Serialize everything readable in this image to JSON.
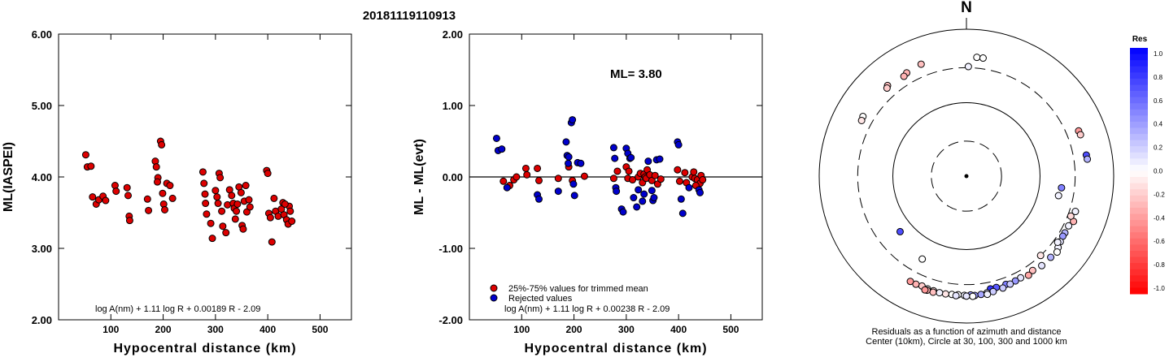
{
  "title": "20181119110913",
  "chart_data": [
    {
      "type": "scatter",
      "id": "left",
      "ylabel": "ML(IASPEI)",
      "xlabel": "Hypocentral distance (km)",
      "xlim": [
        0,
        560
      ],
      "ylim": [
        2.0,
        6.0
      ],
      "xticks": [
        100,
        200,
        300,
        400,
        500
      ],
      "yticks": [
        "2.00",
        "3.00",
        "4.00",
        "5.00",
        "6.00"
      ],
      "formula": "log A(nm) + 1.11 log R + 0.00189 R - 2.09",
      "color": "#dd0000",
      "points": [
        [
          52,
          4.31
        ],
        [
          55,
          4.14
        ],
        [
          62,
          4.15
        ],
        [
          65,
          3.72
        ],
        [
          72,
          3.62
        ],
        [
          77,
          3.68
        ],
        [
          85,
          3.73
        ],
        [
          90,
          3.67
        ],
        [
          108,
          3.88
        ],
        [
          110,
          3.8
        ],
        [
          131,
          3.85
        ],
        [
          133,
          3.74
        ],
        [
          135,
          3.45
        ],
        [
          136,
          3.39
        ],
        [
          170,
          3.69
        ],
        [
          172,
          3.53
        ],
        [
          185,
          4.22
        ],
        [
          187,
          4.14
        ],
        [
          190,
          3.99
        ],
        [
          189,
          3.93
        ],
        [
          195,
          4.5
        ],
        [
          197,
          4.45
        ],
        [
          199,
          3.77
        ],
        [
          201,
          3.62
        ],
        [
          203,
          3.54
        ],
        [
          207,
          3.91
        ],
        [
          213,
          3.88
        ],
        [
          218,
          3.7
        ],
        [
          276,
          4.07
        ],
        [
          278,
          3.91
        ],
        [
          280,
          3.76
        ],
        [
          281,
          3.63
        ],
        [
          283,
          3.48
        ],
        [
          291,
          3.35
        ],
        [
          294,
          3.14
        ],
        [
          300,
          3.81
        ],
        [
          303,
          3.72
        ],
        [
          305,
          3.63
        ],
        [
          307,
          4.05
        ],
        [
          309,
          3.99
        ],
        [
          312,
          3.52
        ],
        [
          314,
          3.31
        ],
        [
          320,
          3.22
        ],
        [
          323,
          3.61
        ],
        [
          327,
          3.82
        ],
        [
          331,
          3.74
        ],
        [
          334,
          3.63
        ],
        [
          336,
          3.56
        ],
        [
          338,
          3.41
        ],
        [
          340,
          3.52
        ],
        [
          342,
          3.62
        ],
        [
          345,
          3.86
        ],
        [
          349,
          3.78
        ],
        [
          351,
          3.32
        ],
        [
          353,
          3.27
        ],
        [
          355,
          3.66
        ],
        [
          358,
          3.88
        ],
        [
          360,
          3.51
        ],
        [
          364,
          3.68
        ],
        [
          366,
          3.58
        ],
        [
          398,
          4.09
        ],
        [
          400,
          4.05
        ],
        [
          402,
          3.49
        ],
        [
          405,
          3.43
        ],
        [
          408,
          3.09
        ],
        [
          412,
          3.7
        ],
        [
          415,
          3.52
        ],
        [
          420,
          3.45
        ],
        [
          426,
          3.55
        ],
        [
          429,
          3.64
        ],
        [
          431,
          3.47
        ],
        [
          436,
          3.4
        ],
        [
          439,
          3.34
        ],
        [
          441,
          3.59
        ],
        [
          443,
          3.52
        ],
        [
          446,
          3.38
        ],
        [
          433,
          3.62
        ]
      ]
    },
    {
      "type": "scatter",
      "id": "middle",
      "ylabel": "ML - ML(evt)",
      "xlabel": "Hypocentral distance (km)",
      "xlim": [
        0,
        560
      ],
      "ylim": [
        -2.0,
        2.0
      ],
      "xticks": [
        100,
        200,
        300,
        400,
        500
      ],
      "yticks": [
        "-2.00",
        "-1.00",
        "0.00",
        "1.00",
        "2.00"
      ],
      "annotation": "ML= 3.80",
      "formula": "log A(nm) + 1.11 log R + 0.00238 R - 2.09",
      "legend": [
        {
          "label": "25%-75% values for trimmed mean",
          "color": "#dd0000"
        },
        {
          "label": "Rejected values",
          "color": "#0000cc"
        }
      ],
      "trimmed": [
        [
          65,
          -0.06
        ],
        [
          77,
          -0.12
        ],
        [
          85,
          -0.04
        ],
        [
          90,
          0.0
        ],
        [
          108,
          0.12
        ],
        [
          110,
          0.03
        ],
        [
          130,
          0.12
        ],
        [
          133,
          -0.05
        ],
        [
          170,
          -0.02
        ],
        [
          190,
          0.14
        ],
        [
          197,
          -0.05
        ],
        [
          220,
          0.01
        ],
        [
          276,
          -0.02
        ],
        [
          283,
          0.08
        ],
        [
          300,
          0.14
        ],
        [
          303,
          -0.02
        ],
        [
          305,
          0.08
        ],
        [
          312,
          -0.04
        ],
        [
          323,
          0.0
        ],
        [
          327,
          0.05
        ],
        [
          331,
          -0.08
        ],
        [
          334,
          0.04
        ],
        [
          336,
          0.0
        ],
        [
          338,
          -0.02
        ],
        [
          340,
          0.1
        ],
        [
          345,
          0.03
        ],
        [
          349,
          -0.05
        ],
        [
          355,
          0.02
        ],
        [
          360,
          -0.1
        ],
        [
          366,
          -0.03
        ],
        [
          398,
          0.1
        ],
        [
          402,
          -0.06
        ],
        [
          412,
          0.06
        ],
        [
          415,
          -0.08
        ],
        [
          426,
          0.0
        ],
        [
          429,
          0.07
        ],
        [
          431,
          -0.02
        ],
        [
          436,
          -0.04
        ],
        [
          441,
          -0.09
        ],
        [
          443,
          0.02
        ],
        [
          446,
          -0.04
        ],
        [
          433,
          -0.12
        ]
      ],
      "rejected": [
        [
          52,
          0.54
        ],
        [
          55,
          0.37
        ],
        [
          62,
          0.39
        ],
        [
          72,
          -0.15
        ],
        [
          130,
          -0.25
        ],
        [
          133,
          -0.31
        ],
        [
          170,
          -0.2
        ],
        [
          185,
          0.49
        ],
        [
          187,
          0.3
        ],
        [
          189,
          0.19
        ],
        [
          190,
          0.28
        ],
        [
          195,
          0.76
        ],
        [
          197,
          0.8
        ],
        [
          199,
          -0.1
        ],
        [
          201,
          -0.26
        ],
        [
          207,
          0.2
        ],
        [
          213,
          0.19
        ],
        [
          276,
          0.41
        ],
        [
          278,
          0.26
        ],
        [
          280,
          -0.15
        ],
        [
          281,
          -0.2
        ],
        [
          291,
          -0.45
        ],
        [
          294,
          -0.49
        ],
        [
          300,
          0.4
        ],
        [
          303,
          0.33
        ],
        [
          307,
          0.26
        ],
        [
          309,
          0.27
        ],
        [
          314,
          -0.29
        ],
        [
          320,
          -0.42
        ],
        [
          323,
          -0.18
        ],
        [
          331,
          -0.34
        ],
        [
          334,
          -0.24
        ],
        [
          342,
          0.22
        ],
        [
          349,
          -0.19
        ],
        [
          351,
          -0.33
        ],
        [
          353,
          -0.29
        ],
        [
          358,
          0.24
        ],
        [
          364,
          0.25
        ],
        [
          398,
          0.49
        ],
        [
          400,
          0.45
        ],
        [
          405,
          -0.31
        ],
        [
          408,
          -0.51
        ],
        [
          420,
          -0.15
        ],
        [
          439,
          -0.18
        ],
        [
          441,
          -0.22
        ]
      ]
    },
    {
      "type": "polar-scatter",
      "id": "azimuth",
      "north_label": "N",
      "caption_line1": "Residuals as a function of azimuth and distance",
      "caption_line2": "Center (10km), Circle at 30, 100, 300 and 1000 km",
      "colorbar_title": "Res",
      "colorbar_ticks": [
        "1.0",
        "0.8",
        "0.6",
        "0.4",
        "0.2",
        "0.0",
        "-0.2",
        "-0.4",
        "-0.6",
        "-0.8",
        "-1.0"
      ],
      "colors": {
        "positive": "#0000ff",
        "negative": "#ff0000",
        "neutral": "#ffffff"
      },
      "stations": [
        [
          5,
          420,
          0.0
        ],
        [
          8,
          420,
          0.0
        ],
        [
          1,
          310,
          0.05
        ],
        [
          -22,
          440,
          -0.25
        ],
        [
          -30,
          420,
          -0.3
        ],
        [
          -32,
          400,
          -0.3
        ],
        [
          -41,
          430,
          -0.25
        ],
        [
          -42,
          410,
          -0.2
        ],
        [
          -60,
          420,
          0.0
        ],
        [
          -62,
          410,
          -0.1
        ],
        [
          68,
          440,
          -0.4
        ],
        [
          70,
          445,
          -0.2
        ],
        [
          80,
          450,
          0.7
        ],
        [
          82,
          455,
          0.3
        ],
        [
          97,
          200,
          0.5
        ],
        [
          102,
          190,
          0.05
        ],
        [
          108,
          360,
          0.05
        ],
        [
          116,
          350,
          0.05
        ],
        [
          120,
          350,
          0.3
        ],
        [
          122,
          350,
          0.4
        ],
        [
          125,
          360,
          0.1
        ],
        [
          128,
          380,
          0.05
        ],
        [
          130,
          405,
          0.0
        ],
        [
          113,
          380,
          -0.3
        ],
        [
          111,
          330,
          -0.15
        ],
        [
          126,
          340,
          0.05
        ],
        [
          134,
          390,
          0.3
        ],
        [
          140,
          390,
          0.1
        ],
        [
          137,
          300,
          -0.1
        ],
        [
          145,
          370,
          -0.25
        ],
        [
          148,
          390,
          -0.35
        ],
        [
          152,
          370,
          0.1
        ],
        [
          155,
          375,
          0.4
        ],
        [
          160,
          370,
          0.5
        ],
        [
          158,
          385,
          0.2
        ],
        [
          165,
          370,
          0.65
        ],
        [
          168,
          370,
          0.8
        ],
        [
          162,
          400,
          0.2
        ],
        [
          167,
          410,
          0.2
        ],
        [
          170,
          410,
          0.15
        ],
        [
          173,
          420,
          0.35
        ],
        [
          176,
          425,
          0.4
        ],
        [
          178,
          415,
          0.4
        ],
        [
          181,
          420,
          0.05
        ],
        [
          184,
          415,
          0.0
        ],
        [
          187,
          420,
          0.0
        ],
        [
          190,
          425,
          -0.1
        ],
        [
          193,
          425,
          0.05
        ],
        [
          196,
          420,
          -0.1
        ],
        [
          199,
          420,
          0.0
        ],
        [
          202,
          410,
          -0.2
        ],
        [
          205,
          420,
          -0.3
        ],
        [
          208,
          420,
          -0.4
        ],
        [
          177,
          435,
          0.0
        ],
        [
          170,
          430,
          0.05
        ],
        [
          196,
          440,
          -0.25
        ],
        [
          199,
          440,
          -0.3
        ],
        [
          200,
          445,
          -0.4
        ],
        [
          208,
          190,
          0.0
        ],
        [
          230,
          150,
          0.7
        ],
        [
          180,
          430,
          0.1
        ],
        [
          185,
          430,
          0.1
        ]
      ]
    }
  ]
}
